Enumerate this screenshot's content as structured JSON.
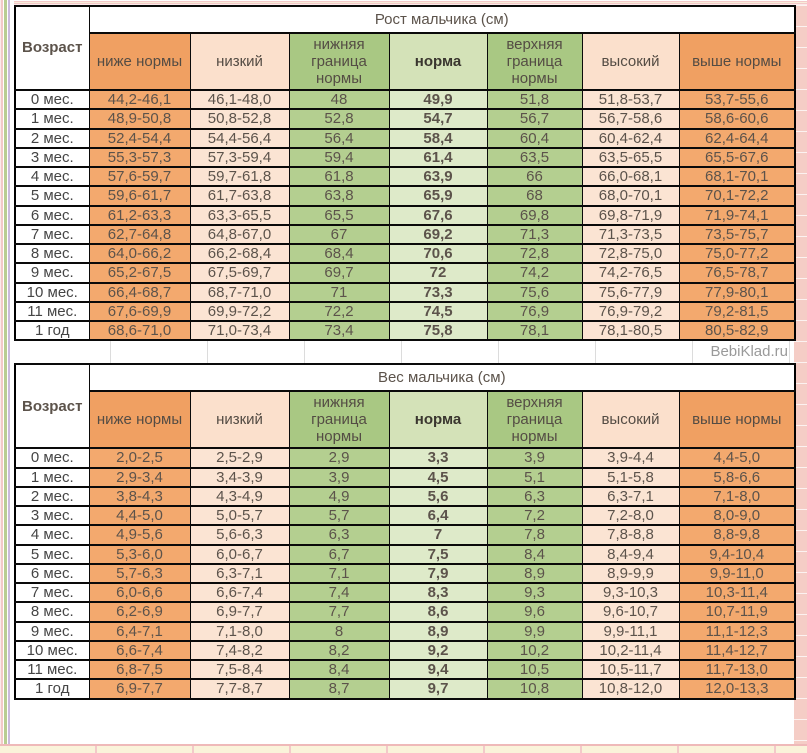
{
  "page": {
    "watermark": "BebiKlad.ru"
  },
  "colors": {
    "orange": "#f3a96e",
    "peach": "#fbe4d3",
    "green": "#b4cf90",
    "light_green": "#deeac9",
    "border": "#000000"
  },
  "chart_data": [
    {
      "type": "table",
      "title": "Рост мальчика (см)",
      "age_header": "Возраст",
      "columns": [
        "ниже нормы",
        "низкий",
        "нижняя граница нормы",
        "норма",
        "верхняя граница нормы",
        "высокий",
        "выше нормы"
      ],
      "rows": [
        [
          "0 мес.",
          "44,2-46,1",
          "46,1-48,0",
          "48",
          "49,9",
          "51,8",
          "51,8-53,7",
          "53,7-55,6"
        ],
        [
          "1 мес.",
          "48,9-50,8",
          "50,8-52,8",
          "52,8",
          "54,7",
          "56,7",
          "56,7-58,6",
          "58,6-60,6"
        ],
        [
          "2 мес.",
          "52,4-54,4",
          "54,4-56,4",
          "56,4",
          "58,4",
          "60,4",
          "60,4-62,4",
          "62,4-64,4"
        ],
        [
          "3 мес.",
          "55,3-57,3",
          "57,3-59,4",
          "59,4",
          "61,4",
          "63,5",
          "63,5-65,5",
          "65,5-67,6"
        ],
        [
          "4 мес.",
          "57,6-59,7",
          "59,7-61,8",
          "61,8",
          "63,9",
          "66",
          "66,0-68,1",
          "68,1-70,1"
        ],
        [
          "5 мес.",
          "59,6-61,7",
          "61,7-63,8",
          "63,8",
          "65,9",
          "68",
          "68,0-70,1",
          "70,1-72,2"
        ],
        [
          "6 мес.",
          "61,2-63,3",
          "63,3-65,5",
          "65,5",
          "67,6",
          "69,8",
          "69,8-71,9",
          "71,9-74,1"
        ],
        [
          "7 мес.",
          "62,7-64,8",
          "64,8-67,0",
          "67",
          "69,2",
          "71,3",
          "71,3-73,5",
          "73,5-75,7"
        ],
        [
          "8 мес.",
          "64,0-66,2",
          "66,2-68,4",
          "68,4",
          "70,6",
          "72,8",
          "72,8-75,0",
          "75,0-77,2"
        ],
        [
          "9 мес.",
          "65,2-67,5",
          "67,5-69,7",
          "69,7",
          "72",
          "74,2",
          "74,2-76,5",
          "76,5-78,7"
        ],
        [
          "10 мес.",
          "66,4-68,7",
          "68,7-71,0",
          "71",
          "73,3",
          "75,6",
          "75,6-77,9",
          "77,9-80,1"
        ],
        [
          "11 мес.",
          "67,6-69,9",
          "69,9-72,2",
          "72,2",
          "74,5",
          "76,9",
          "76,9-79,2",
          "79,2-81,5"
        ],
        [
          "1 год",
          "68,6-71,0",
          "71,0-73,4",
          "73,4",
          "75,8",
          "78,1",
          "78,1-80,5",
          "80,5-82,9"
        ]
      ]
    },
    {
      "type": "table",
      "title": "Вес мальчика (см)",
      "age_header": "Возраст",
      "columns": [
        "ниже нормы",
        "низкий",
        "нижняя граница нормы",
        "норма",
        "верхняя граница нормы",
        "высокий",
        "выше нормы"
      ],
      "rows": [
        [
          "0 мес.",
          "2,0-2,5",
          "2,5-2,9",
          "2,9",
          "3,3",
          "3,9",
          "3,9-4,4",
          "4,4-5,0"
        ],
        [
          "1 мес.",
          "2,9-3,4",
          "3,4-3,9",
          "3,9",
          "4,5",
          "5,1",
          "5,1-5,8",
          "5,8-6,6"
        ],
        [
          "2 мес.",
          "3,8-4,3",
          "4,3-4,9",
          "4,9",
          "5,6",
          "6,3",
          "6,3-7,1",
          "7,1-8,0"
        ],
        [
          "3 мес.",
          "4,4-5,0",
          "5,0-5,7",
          "5,7",
          "6,4",
          "7,2",
          "7,2-8,0",
          "8,0-9,0"
        ],
        [
          "4 мес.",
          "4,9-5,6",
          "5,6-6,3",
          "6,3",
          "7",
          "7,8",
          "7,8-8,8",
          "8,8-9,8"
        ],
        [
          "5 мес.",
          "5,3-6,0",
          "6,0-6,7",
          "6,7",
          "7,5",
          "8,4",
          "8,4-9,4",
          "9,4-10,4"
        ],
        [
          "6 мес.",
          "5,7-6,3",
          "6,3-7,1",
          "7,1",
          "7,9",
          "8,9",
          "8,9-9,9",
          "9,9-11,0"
        ],
        [
          "7 мес.",
          "6,0-6,6",
          "6,6-7,4",
          "7,4",
          "8,3",
          "9,3",
          "9,3-10,3",
          "10,3-11,4"
        ],
        [
          "8 мес.",
          "6,2-6,9",
          "6,9-7,7",
          "7,7",
          "8,6",
          "9,6",
          "9,6-10,7",
          "10,7-11,9"
        ],
        [
          "9 мес.",
          "6,4-7,1",
          "7,1-8,0",
          "8",
          "8,9",
          "9,9",
          "9,9-11,1",
          "11,1-12,3"
        ],
        [
          "10 мес.",
          "6,6-7,4",
          "7,4-8,2",
          "8,2",
          "9,2",
          "10,2",
          "10,2-11,4",
          "11,4-12,7"
        ],
        [
          "11 мес.",
          "6,8-7,5",
          "7,5-8,4",
          "8,4",
          "9,4",
          "10,5",
          "10,5-11,7",
          "11,7-13,0"
        ],
        [
          "1 год",
          "6,9-7,7",
          "7,7-8,7",
          "8,7",
          "9,7",
          "10,8",
          "10,8-12,0",
          "12,0-13,3"
        ]
      ]
    }
  ]
}
